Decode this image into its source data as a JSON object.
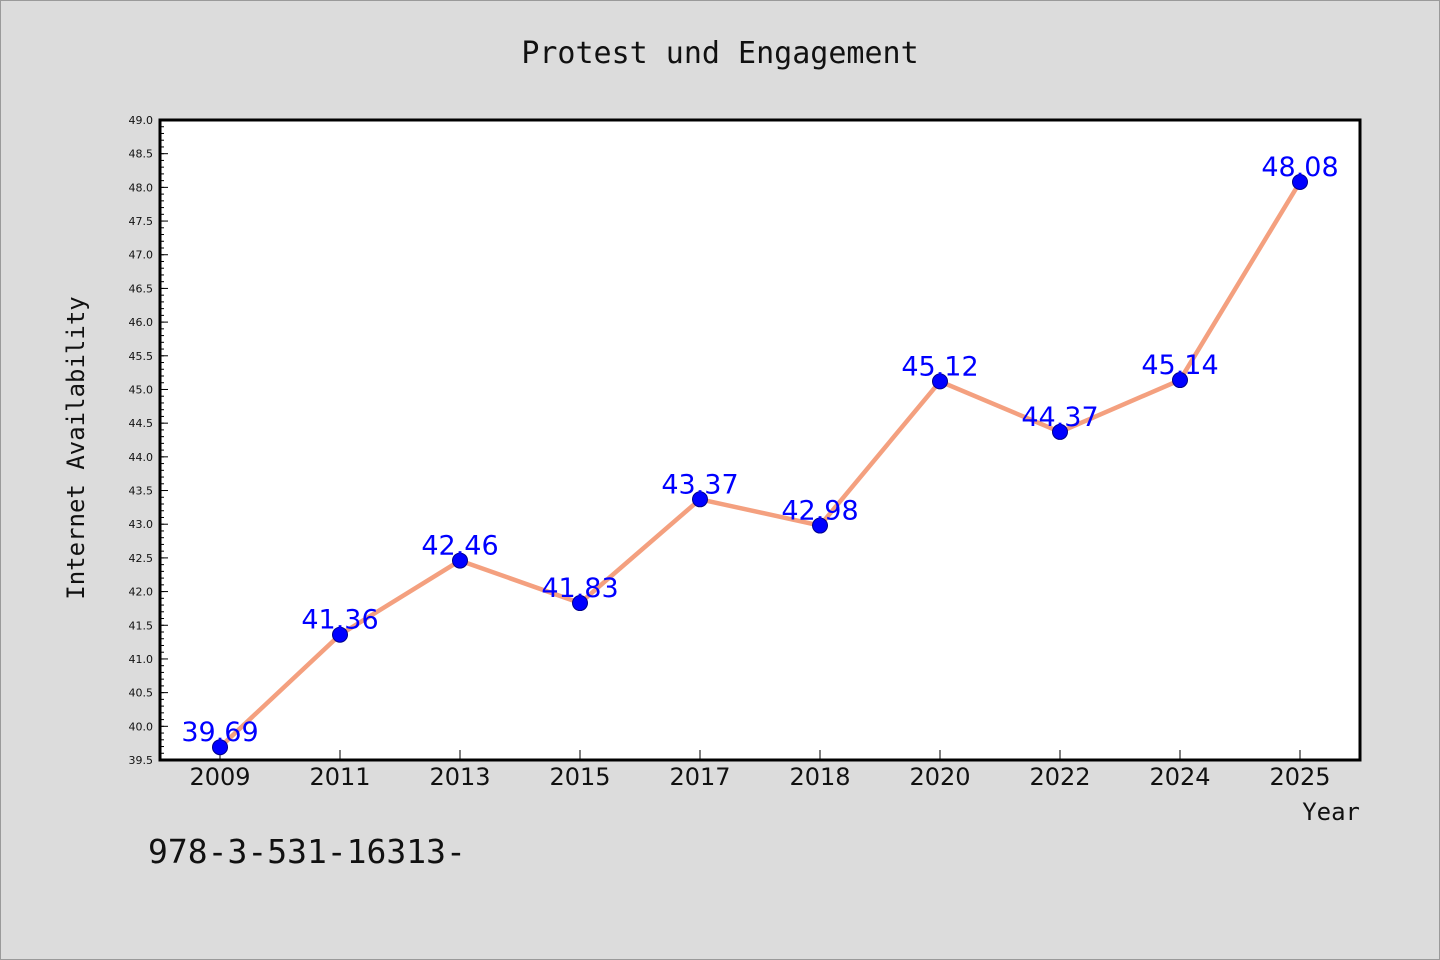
{
  "chart_data": {
    "type": "line",
    "title": "Protest und Engagement",
    "xlabel": "Year",
    "ylabel": "Internet Availability",
    "categories": [
      "2009",
      "2011",
      "2013",
      "2015",
      "2017",
      "2018",
      "2020",
      "2022",
      "2024",
      "2025"
    ],
    "series": [
      {
        "values": [
          39.69,
          41.36,
          42.46,
          41.83,
          43.37,
          42.98,
          45.12,
          44.37,
          45.14,
          48.08
        ],
        "data_labels": [
          "39.69",
          "41.36",
          "42.46",
          "41.83",
          "43.37",
          "42.98",
          "45.12",
          "44.37",
          "45.14",
          "48.08"
        ]
      }
    ],
    "ylim": [
      39.5,
      49.0
    ],
    "yticks": [
      "39.5",
      "40.0",
      "40.5",
      "41.0",
      "41.5",
      "42.0",
      "42.5",
      "43.0",
      "43.5",
      "44.0",
      "44.5",
      "45.0",
      "45.5",
      "46.0",
      "46.5",
      "47.0",
      "47.5",
      "48.0",
      "48.5",
      "49.0"
    ],
    "grid": false,
    "legend": "none",
    "colors": {
      "line": "#f4a07f",
      "marker": "#0000ff",
      "data_label": "#0000ff",
      "background": "#dcdcdc",
      "plot_background": "#ffffff"
    }
  },
  "annotation": "978-3-531-16313-"
}
